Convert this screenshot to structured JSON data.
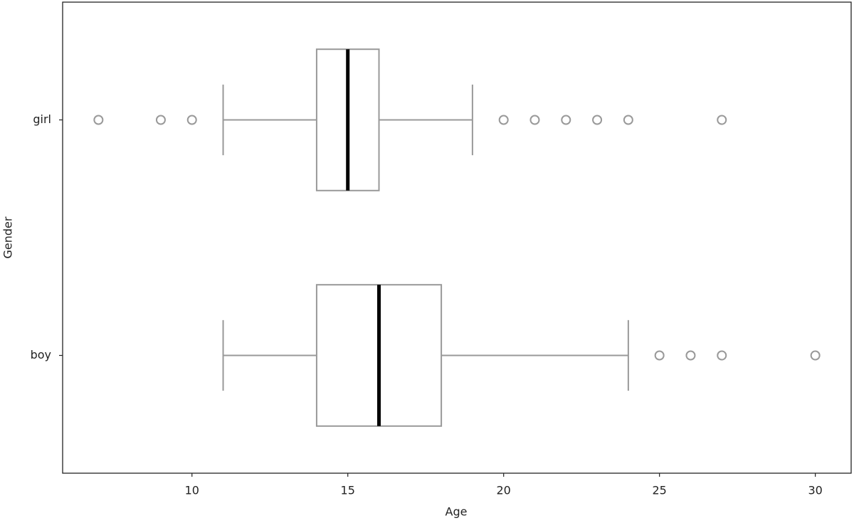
{
  "chart_data": {
    "type": "box",
    "x_label": "Age",
    "y_label": "Gender",
    "categories": [
      "boy",
      "girl"
    ],
    "boxes": [
      {
        "whislo": 11,
        "q1": 14,
        "med": 16,
        "q3": 18,
        "whishi": 24,
        "fliers": [
          25,
          26,
          27,
          30
        ]
      },
      {
        "whislo": 11,
        "q1": 14,
        "med": 15,
        "q3": 16,
        "whishi": 19,
        "fliers": [
          7,
          9,
          10,
          20,
          21,
          22,
          23,
          24,
          27
        ]
      }
    ],
    "box_color": "#999999",
    "median_color": "#000000",
    "xlim": [
      5.85,
      31.15
    ],
    "xticks": [
      10,
      15,
      20,
      25,
      30
    ]
  }
}
